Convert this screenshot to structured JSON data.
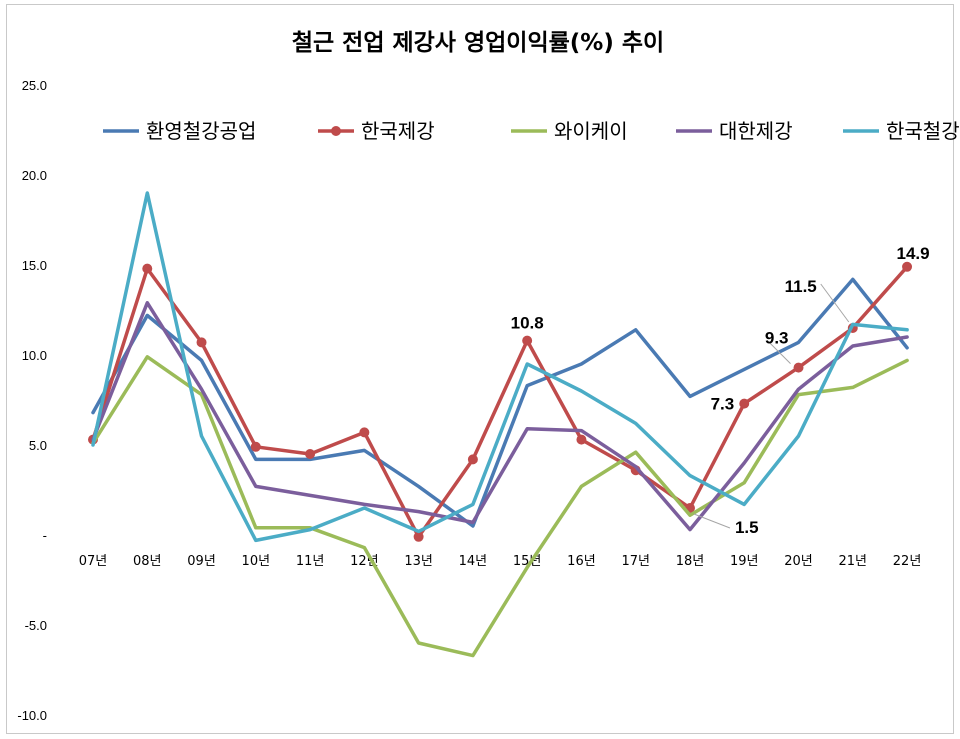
{
  "chart_data": {
    "type": "line",
    "title": "철근 전업 제강사 영업이익률(%) 추이",
    "xlabel": "",
    "ylabel": "",
    "ylim": [
      -10,
      25
    ],
    "grid": false,
    "legend_position": "top",
    "y_ticks": [
      "25.0",
      "20.0",
      "15.0",
      "10.0",
      "5.0",
      "-",
      "-5.0",
      "-10.0"
    ],
    "categories": [
      "07년",
      "08년",
      "09년",
      "10년",
      "11년",
      "12년",
      "13년",
      "14년",
      "15년",
      "16년",
      "17년",
      "18년",
      "19년",
      "20년",
      "21년",
      "22년"
    ],
    "series": [
      {
        "name": "환영철강공업",
        "color": "#4a7ab3",
        "markers": false,
        "values": [
          6.8,
          12.2,
          9.7,
          4.2,
          4.2,
          4.7,
          2.7,
          0.5,
          8.3,
          9.5,
          11.4,
          7.7,
          9.2,
          10.7,
          14.2,
          10.4
        ]
      },
      {
        "name": "한국제강",
        "color": "#bf4b4b",
        "markers": true,
        "values": [
          5.3,
          14.8,
          10.7,
          4.9,
          4.5,
          5.7,
          -0.1,
          4.2,
          10.8,
          5.3,
          3.6,
          1.5,
          7.3,
          9.3,
          11.5,
          14.9
        ]
      },
      {
        "name": "와이케이",
        "color": "#9bbb59",
        "markers": false,
        "values": [
          5.1,
          9.9,
          7.8,
          0.4,
          0.4,
          -0.7,
          -6.0,
          -6.7,
          -1.8,
          2.7,
          4.6,
          1.1,
          2.9,
          7.8,
          8.2,
          9.7
        ]
      },
      {
        "name": "대한제강",
        "color": "#7b5e9c",
        "markers": false,
        "values": [
          5.3,
          12.9,
          8.1,
          2.7,
          2.2,
          1.7,
          1.3,
          0.7,
          5.9,
          5.8,
          3.8,
          0.3,
          4.0,
          8.1,
          10.5,
          11.0
        ]
      },
      {
        "name": "한국철강",
        "color": "#4bacc6",
        "markers": false,
        "values": [
          5.0,
          19.0,
          5.5,
          -0.3,
          0.3,
          1.5,
          0.2,
          1.7,
          9.5,
          8.0,
          6.2,
          3.3,
          1.7,
          5.5,
          11.7,
          11.4
        ]
      }
    ],
    "annotations": [
      {
        "series": "한국제강",
        "category": "15년",
        "text": "10.8"
      },
      {
        "series": "한국제강",
        "category": "18년",
        "text": "1.5"
      },
      {
        "series": "한국제강",
        "category": "19년",
        "text": "7.3"
      },
      {
        "series": "한국제강",
        "category": "20년",
        "text": "9.3"
      },
      {
        "series": "한국제강",
        "category": "21년",
        "text": "11.5"
      },
      {
        "series": "한국제강",
        "category": "22년",
        "text": "14.9"
      }
    ]
  }
}
